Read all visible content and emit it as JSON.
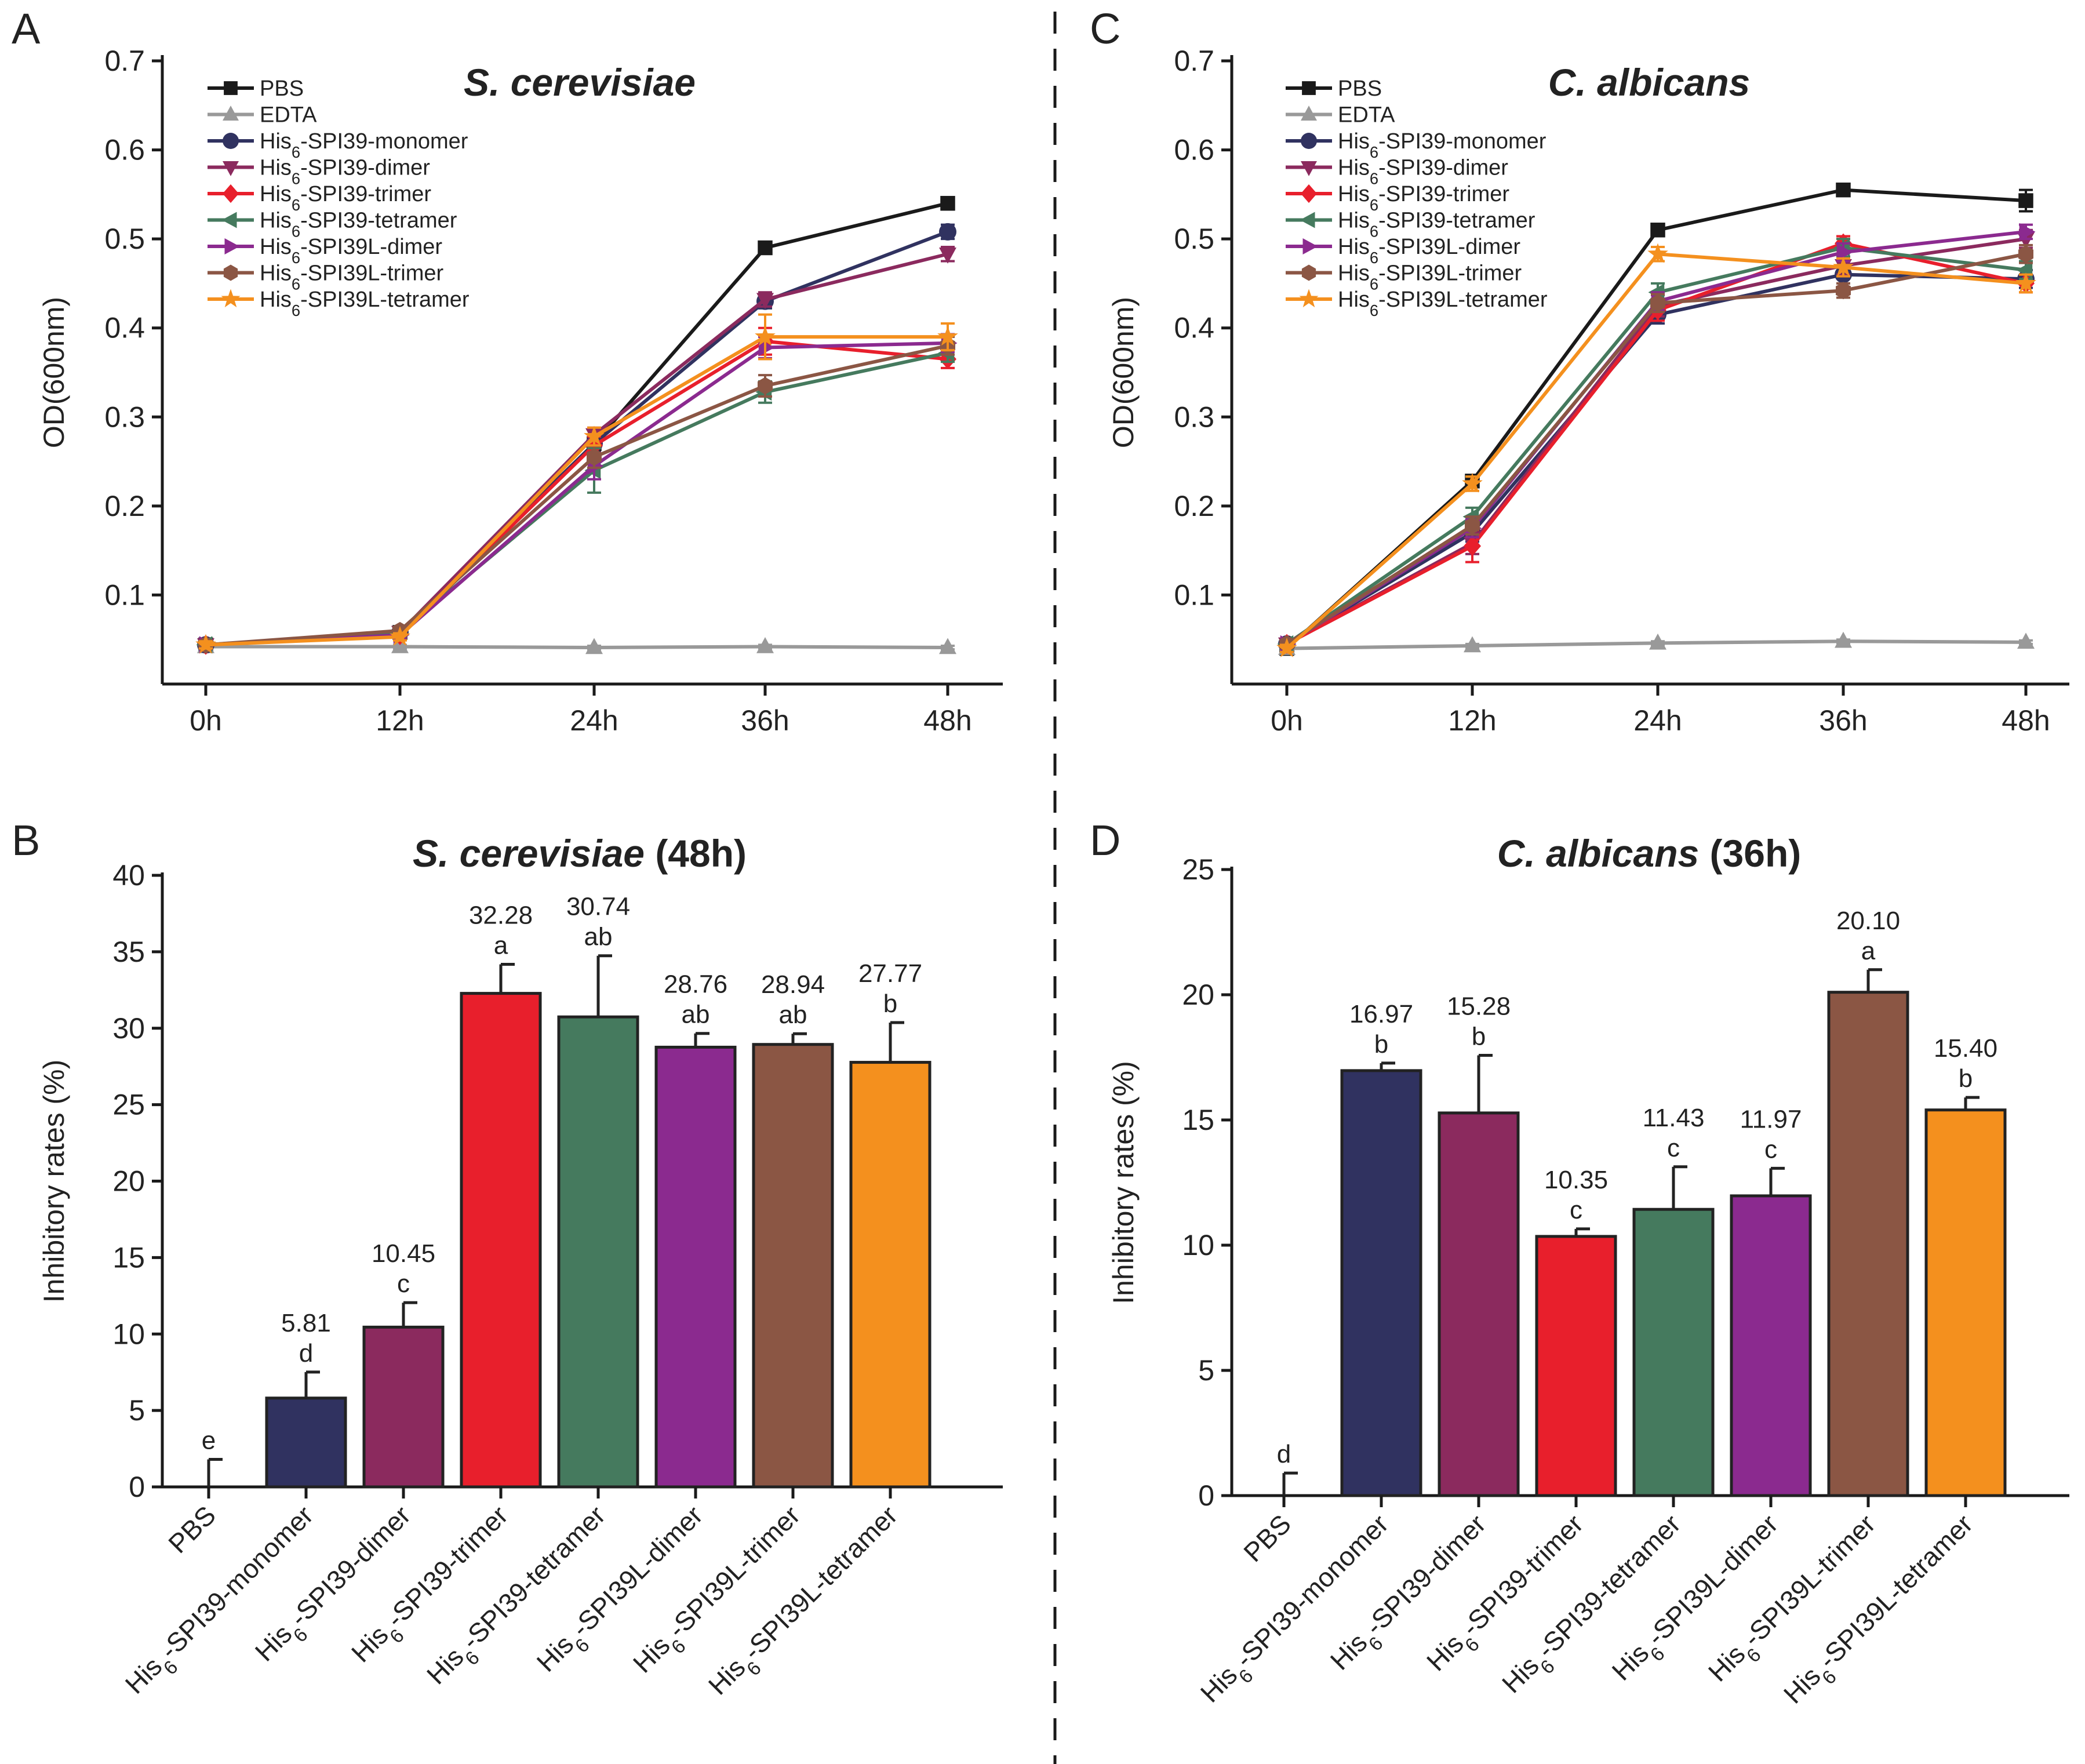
{
  "figure": {
    "panel_letters": [
      "A",
      "B",
      "C",
      "D"
    ],
    "line_legend": [
      "PBS",
      "EDTA",
      "His6-SPI39-monomer",
      "His6-SPI39-dimer",
      "His6-SPI39-trimer",
      "His6-SPI39-tetramer",
      "His6-SPI39L-dimer",
      "His6-SPI39L-trimer",
      "His6-SPI39L-tetramer"
    ],
    "bar_categories": [
      "PBS",
      "His6-SPI39-monomer",
      "His6-SPI39-dimer",
      "His6-SPI39-trimer",
      "His6-SPI39-tetramer",
      "His6-SPI39L-dimer",
      "His6-SPI39L-trimer",
      "His6-SPI39L-tetramer"
    ],
    "colors": {
      "PBS": "#1a1a1a",
      "EDTA": "#999999",
      "monomer": "#303260",
      "dimer": "#8b2a5e",
      "trimer": "#e81f2c",
      "tetramer": "#457a5e",
      "L-dimer": "#8b2a8f",
      "L-trimer": "#8b5644",
      "L-tetramer": "#f4901e"
    }
  },
  "chart_data": [
    {
      "panel": "A",
      "type": "line",
      "title_italic": "S. cerevisiae",
      "title_rest": "",
      "xlabel": "",
      "ylabel": "OD(600nm)",
      "x": [
        "0h",
        "12h",
        "24h",
        "36h",
        "48h"
      ],
      "ylim": [
        0.0,
        0.7
      ],
      "yticks": [
        "0.1",
        "0.2",
        "0.3",
        "0.4",
        "0.5",
        "0.6",
        "0.7"
      ],
      "series": [
        {
          "name": "PBS",
          "values": [
            0.044,
            0.058,
            0.27,
            0.49,
            0.54
          ],
          "errors": [
            0.004,
            0.004,
            0.008,
            0.005,
            0.007
          ]
        },
        {
          "name": "EDTA",
          "values": [
            0.042,
            0.042,
            0.041,
            0.042,
            0.041
          ],
          "errors": [
            0.002,
            0.002,
            0.002,
            0.002,
            0.002
          ]
        },
        {
          "name": "His6-SPI39-monomer",
          "values": [
            0.044,
            0.058,
            0.27,
            0.43,
            0.508
          ],
          "errors": [
            0.004,
            0.004,
            0.01,
            0.008,
            0.008
          ]
        },
        {
          "name": "His6-SPI39-dimer",
          "values": [
            0.044,
            0.058,
            0.28,
            0.432,
            0.483
          ],
          "errors": [
            0.004,
            0.004,
            0.008,
            0.008,
            0.008
          ]
        },
        {
          "name": "His6-SPI39-trimer",
          "values": [
            0.044,
            0.055,
            0.268,
            0.385,
            0.365
          ],
          "errors": [
            0.004,
            0.004,
            0.01,
            0.015,
            0.01
          ]
        },
        {
          "name": "His6-SPI39-tetramer",
          "values": [
            0.044,
            0.058,
            0.24,
            0.328,
            0.372
          ],
          "errors": [
            0.004,
            0.004,
            0.025,
            0.012,
            0.01
          ]
        },
        {
          "name": "His6-SPI39L-dimer",
          "values": [
            0.044,
            0.055,
            0.245,
            0.378,
            0.383
          ],
          "errors": [
            0.004,
            0.004,
            0.015,
            0.012,
            0.01
          ]
        },
        {
          "name": "His6-SPI39L-trimer",
          "values": [
            0.044,
            0.06,
            0.255,
            0.335,
            0.38
          ],
          "errors": [
            0.004,
            0.004,
            0.012,
            0.012,
            0.01
          ]
        },
        {
          "name": "His6-SPI39L-tetramer",
          "values": [
            0.044,
            0.053,
            0.278,
            0.39,
            0.39
          ],
          "errors": [
            0.004,
            0.004,
            0.01,
            0.025,
            0.015
          ]
        }
      ]
    },
    {
      "panel": "B",
      "type": "bar",
      "title_italic": "S. cerevisiae",
      "title_rest": " (48h)",
      "xlabel": "",
      "ylabel": "Inhibitory rates (%)",
      "categories": [
        "PBS",
        "His6-SPI39-monomer",
        "His6-SPI39-dimer",
        "His6-SPI39-trimer",
        "His6-SPI39-tetramer",
        "His6-SPI39L-dimer",
        "His6-SPI39L-trimer",
        "His6-SPI39L-tetramer"
      ],
      "values": [
        0,
        5.81,
        10.45,
        32.28,
        30.74,
        28.76,
        28.94,
        27.77
      ],
      "errors": [
        1.8,
        1.7,
        1.6,
        1.9,
        4.0,
        0.9,
        0.7,
        2.6
      ],
      "value_labels": [
        "",
        "5.81",
        "10.45",
        "32.28",
        "30.74",
        "28.76",
        "28.94",
        "27.77"
      ],
      "letters": [
        "e",
        "d",
        "c",
        "a",
        "ab",
        "ab",
        "ab",
        "b"
      ],
      "ylim": [
        0,
        40
      ],
      "yticks": [
        "0",
        "5",
        "10",
        "15",
        "20",
        "25",
        "30",
        "35",
        "40"
      ]
    },
    {
      "panel": "C",
      "type": "line",
      "title_italic": "C. albicans",
      "title_rest": "",
      "xlabel": "",
      "ylabel": "OD(600nm)",
      "x": [
        "0h",
        "12h",
        "24h",
        "36h",
        "48h"
      ],
      "ylim": [
        0.0,
        0.7
      ],
      "yticks": [
        "0.1",
        "0.2",
        "0.3",
        "0.4",
        "0.5",
        "0.6",
        "0.7"
      ],
      "series": [
        {
          "name": "PBS",
          "values": [
            0.04,
            0.228,
            0.51,
            0.555,
            0.543
          ],
          "errors": [
            0.004,
            0.006,
            0.005,
            0.005,
            0.012
          ]
        },
        {
          "name": "EDTA",
          "values": [
            0.04,
            0.043,
            0.046,
            0.048,
            0.047
          ],
          "errors": [
            0.002,
            0.002,
            0.002,
            0.002,
            0.002
          ]
        },
        {
          "name": "His6-SPI39-monomer",
          "values": [
            0.045,
            0.17,
            0.415,
            0.46,
            0.455
          ],
          "errors": [
            0.004,
            0.01,
            0.01,
            0.01,
            0.01
          ]
        },
        {
          "name": "His6-SPI39-dimer",
          "values": [
            0.045,
            0.158,
            0.425,
            0.47,
            0.5
          ],
          "errors": [
            0.004,
            0.012,
            0.012,
            0.01,
            0.01
          ]
        },
        {
          "name": "His6-SPI39-trimer",
          "values": [
            0.045,
            0.155,
            0.42,
            0.495,
            0.45
          ],
          "errors": [
            0.004,
            0.018,
            0.012,
            0.008,
            0.01
          ]
        },
        {
          "name": "His6-SPI39-tetramer",
          "values": [
            0.045,
            0.188,
            0.44,
            0.49,
            0.465
          ],
          "errors": [
            0.004,
            0.01,
            0.01,
            0.01,
            0.01
          ]
        },
        {
          "name": "His6-SPI39L-dimer",
          "values": [
            0.045,
            0.175,
            0.43,
            0.485,
            0.508
          ],
          "errors": [
            0.004,
            0.01,
            0.01,
            0.01,
            0.008
          ]
        },
        {
          "name": "His6-SPI39L-trimer",
          "values": [
            0.045,
            0.178,
            0.428,
            0.442,
            0.483
          ],
          "errors": [
            0.004,
            0.01,
            0.01,
            0.008,
            0.01
          ]
        },
        {
          "name": "His6-SPI39L-tetramer",
          "values": [
            0.04,
            0.225,
            0.483,
            0.468,
            0.45
          ],
          "errors": [
            0.004,
            0.008,
            0.008,
            0.01,
            0.01
          ]
        }
      ]
    },
    {
      "panel": "D",
      "type": "bar",
      "title_italic": "C. albicans",
      "title_rest": " (36h)",
      "xlabel": "",
      "ylabel": "Inhibitory rates (%)",
      "categories": [
        "PBS",
        "His6-SPI39-monomer",
        "His6-SPI39-dimer",
        "His6-SPI39-trimer",
        "His6-SPI39-tetramer",
        "His6-SPI39L-dimer",
        "His6-SPI39L-trimer",
        "His6-SPI39L-tetramer"
      ],
      "values": [
        0,
        16.97,
        15.28,
        10.35,
        11.43,
        11.97,
        20.1,
        15.4
      ],
      "errors": [
        0.9,
        0.3,
        2.3,
        0.3,
        1.7,
        1.1,
        0.9,
        0.5
      ],
      "value_labels": [
        "",
        "16.97",
        "15.28",
        "10.35",
        "11.43",
        "11.97",
        "20.10",
        "15.40"
      ],
      "letters": [
        "d",
        "b",
        "b",
        "c",
        "c",
        "c",
        "a",
        "b"
      ],
      "ylim": [
        0,
        25
      ],
      "yticks": [
        "0",
        "5",
        "10",
        "15",
        "20",
        "25"
      ]
    }
  ]
}
